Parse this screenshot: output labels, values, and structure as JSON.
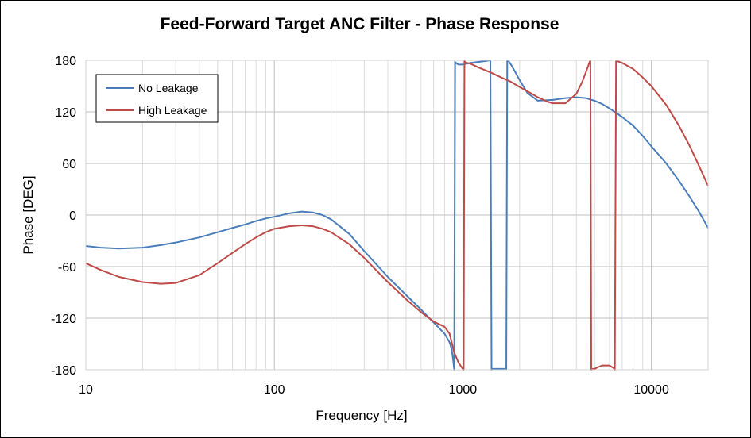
{
  "chart_data": {
    "type": "line",
    "title": "Feed-Forward Target ANC Filter - Phase Response",
    "xlabel": "Frequency [Hz]",
    "ylabel": "Phase [DEG]",
    "xscale": "log",
    "xlim": [
      10,
      20000
    ],
    "ylim": [
      -180,
      180
    ],
    "xticks": [
      10,
      100,
      1000,
      10000
    ],
    "xtick_labels": [
      "10",
      "100",
      "1000",
      "10000"
    ],
    "yticks": [
      180,
      120,
      60,
      0,
      -60,
      -120,
      -180
    ],
    "ytick_labels": [
      "180",
      "120",
      "60",
      "0",
      "-60",
      "-120",
      "-180"
    ],
    "grid": true,
    "legend_position": "top-left",
    "series": [
      {
        "name": "No Leakage",
        "color": "#4a7ebb",
        "x": [
          10,
          12,
          15,
          20,
          25,
          30,
          40,
          50,
          60,
          70,
          80,
          90,
          100,
          120,
          140,
          160,
          180,
          200,
          250,
          300,
          350,
          400,
          500,
          600,
          700,
          800,
          850,
          870,
          880,
          890,
          900,
          910,
          930,
          950,
          1000,
          1050,
          1100,
          1200,
          1300,
          1400,
          1420,
          1430,
          1440,
          1450,
          1500,
          1600,
          1650,
          1680,
          1700,
          1720,
          1750,
          1800,
          1900,
          2000,
          2200,
          2500,
          3000,
          3500,
          4000,
          4500,
          5000,
          5500,
          6000,
          6500,
          7000,
          8000,
          9000,
          10000,
          12000,
          14000,
          16000,
          18000,
          20000
        ],
        "y": [
          -36,
          -38,
          -39,
          -38,
          -35,
          -32,
          -26,
          -20,
          -15,
          -11,
          -7,
          -4,
          -2,
          2,
          4,
          3,
          0,
          -5,
          -22,
          -42,
          -58,
          -72,
          -93,
          -110,
          -125,
          -138,
          -148,
          -155,
          -162,
          -170,
          -180,
          178,
          176,
          175,
          175,
          176,
          177,
          178,
          179,
          180,
          -180,
          -179,
          -179,
          -179,
          -179,
          -179,
          -179,
          -179,
          -179,
          180,
          179,
          175,
          166,
          157,
          142,
          133,
          134,
          136,
          137,
          136,
          133,
          129,
          124,
          119,
          114,
          104,
          92,
          80,
          60,
          40,
          21,
          3,
          -15
        ]
      },
      {
        "name": "High Leakage",
        "color": "#be4b48",
        "x": [
          10,
          12,
          15,
          20,
          25,
          30,
          40,
          50,
          60,
          70,
          80,
          90,
          100,
          120,
          140,
          160,
          180,
          200,
          250,
          300,
          350,
          400,
          500,
          600,
          700,
          800,
          850,
          900,
          950,
          1000,
          1010,
          1020,
          1030,
          1050,
          1100,
          1200,
          1400,
          1600,
          1800,
          2000,
          2200,
          2500,
          2800,
          3000,
          3500,
          4000,
          4300,
          4600,
          4700,
          4750,
          4800,
          4900,
          5000,
          5200,
          5500,
          6000,
          6300,
          6400,
          6500,
          6600,
          7000,
          8000,
          9000,
          10000,
          12000,
          14000,
          16000,
          18000,
          20000
        ],
        "y": [
          -56,
          -64,
          -72,
          -78,
          -80,
          -79,
          -70,
          -56,
          -44,
          -34,
          -26,
          -20,
          -16,
          -13,
          -12,
          -13,
          -16,
          -20,
          -34,
          -50,
          -65,
          -78,
          -98,
          -113,
          -124,
          -130,
          -138,
          -160,
          -172,
          -179,
          -180,
          179,
          178,
          177,
          176,
          172,
          166,
          160,
          155,
          149,
          144,
          137,
          132,
          130,
          130,
          141,
          155,
          172,
          178,
          180,
          -180,
          -179,
          -179,
          -177,
          -175,
          -175,
          -178,
          -180,
          180,
          179,
          177,
          170,
          160,
          150,
          128,
          104,
          80,
          56,
          34
        ]
      }
    ]
  }
}
